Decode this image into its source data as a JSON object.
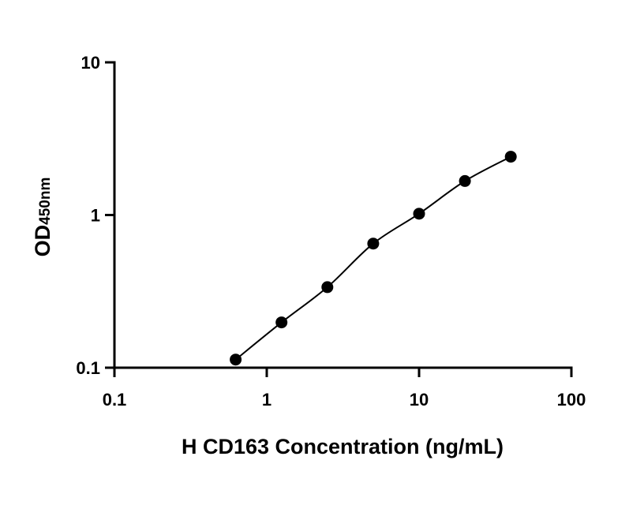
{
  "chart_data": {
    "type": "scatter",
    "xlabel": "H CD163 Concentration (ng/mL)",
    "ylabel_main": "OD",
    "ylabel_sub": "450nm",
    "x_scale": "log",
    "y_scale": "log",
    "xlim": [
      0.1,
      100
    ],
    "ylim": [
      0.1,
      10
    ],
    "x_ticks": [
      "0.1",
      "1",
      "10",
      "100"
    ],
    "y_ticks": [
      "0.1",
      "1",
      "10"
    ],
    "grid": false,
    "series": [
      {
        "x": [
          0.625,
          1.25,
          2.5,
          5,
          10,
          20,
          40
        ],
        "y": [
          0.113,
          0.198,
          0.337,
          0.65,
          1.02,
          1.67,
          2.41
        ],
        "color": "#000000",
        "fit_line": true
      }
    ]
  }
}
